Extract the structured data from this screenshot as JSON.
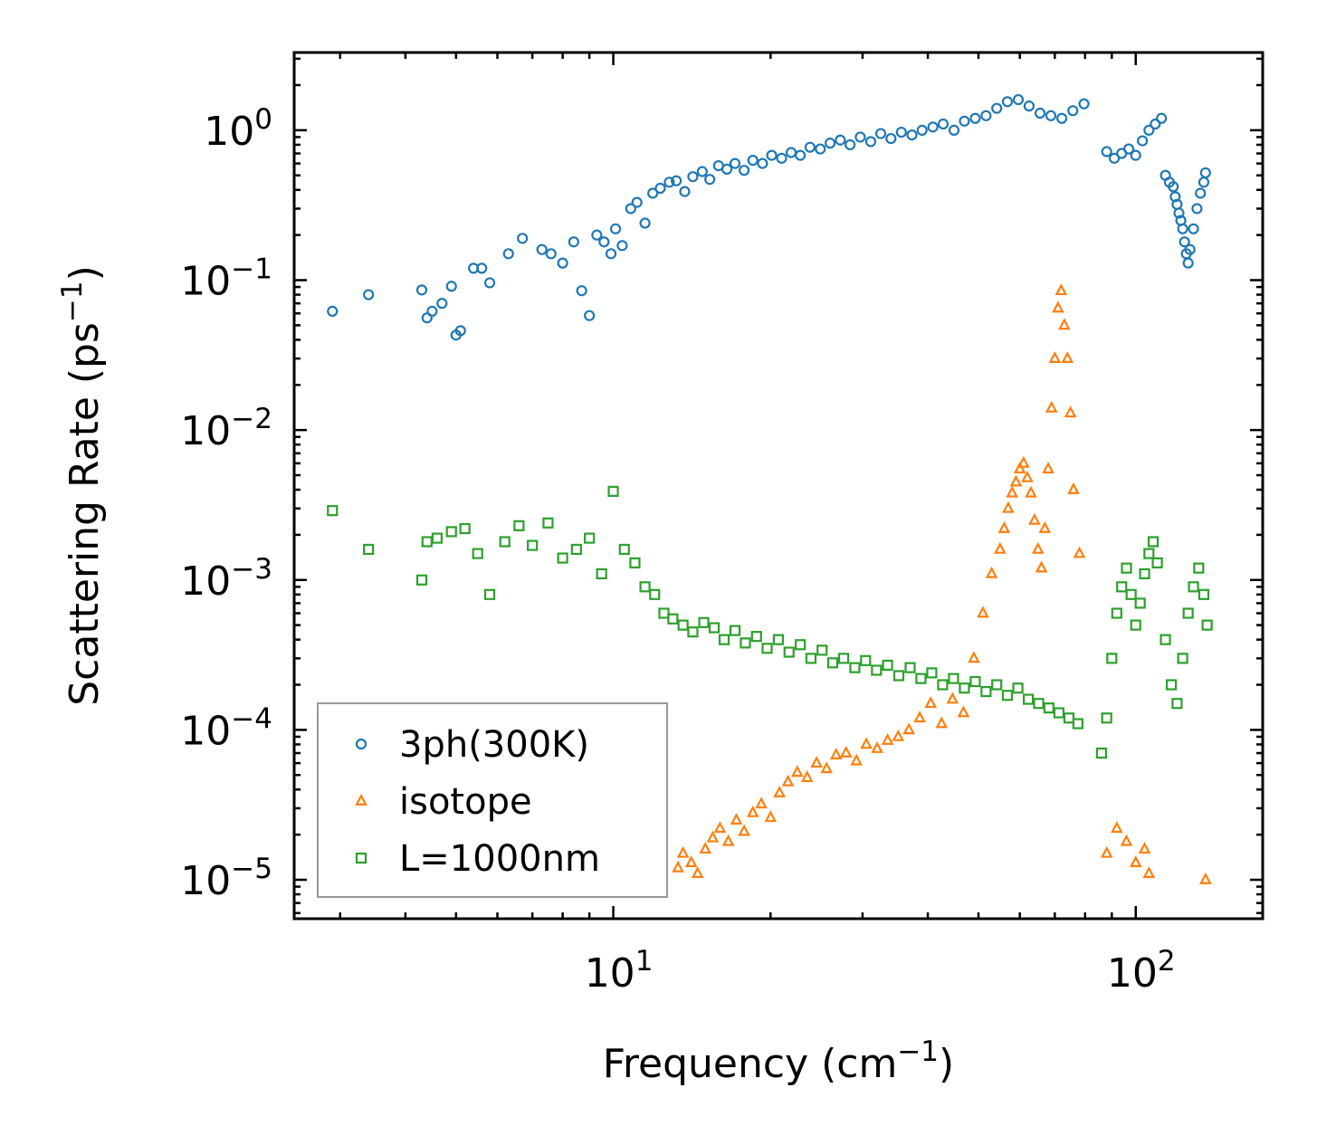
{
  "chart_data": {
    "type": "scatter",
    "title": "",
    "xscale": "log",
    "yscale": "log",
    "xlabel": {
      "base": "Frequency (cm",
      "sup": "−1",
      "tail": ")"
    },
    "ylabel": {
      "base": "Scattering Rate (ps",
      "sup": "−1",
      "tail": ")"
    },
    "xlim": [
      2.45,
      175
    ],
    "ylim": [
      5.5e-06,
      3.3
    ],
    "x_ticks": [
      {
        "value": 10,
        "base": "10",
        "exp": "1"
      },
      {
        "value": 100,
        "base": "10",
        "exp": "2"
      }
    ],
    "y_ticks": [
      {
        "value": 1,
        "base": "10",
        "exp": "0"
      },
      {
        "value": 0.1,
        "base": "10",
        "exp": "−1"
      },
      {
        "value": 0.01,
        "base": "10",
        "exp": "−2"
      },
      {
        "value": 0.001,
        "base": "10",
        "exp": "−3"
      },
      {
        "value": 0.0001,
        "base": "10",
        "exp": "−4"
      },
      {
        "value": 1e-05,
        "base": "10",
        "exp": "−5"
      }
    ],
    "legend_position": "lower-left",
    "series": [
      {
        "name": "3ph(300K)",
        "marker": "circle",
        "color": "#1f77b4",
        "x": [
          2.9,
          3.4,
          4.3,
          4.4,
          4.5,
          4.7,
          4.9,
          5.0,
          5.1,
          5.4,
          5.6,
          5.8,
          6.3,
          6.7,
          7.3,
          7.6,
          8.0,
          8.4,
          8.7,
          9.0,
          9.3,
          9.6,
          9.9,
          10.1,
          10.4,
          10.8,
          11.1,
          11.5,
          11.9,
          12.3,
          12.8,
          13.2,
          13.7,
          14.2,
          14.8,
          15.3,
          15.9,
          16.5,
          17.1,
          17.8,
          18.5,
          19.3,
          20.1,
          21.0,
          21.9,
          22.8,
          23.8,
          24.9,
          26.0,
          27.2,
          28.4,
          29.7,
          31.1,
          32.5,
          34.0,
          35.6,
          37.3,
          39.0,
          40.9,
          42.8,
          44.9,
          47.0,
          49.3,
          51.7,
          54.2,
          56.8,
          59.6,
          62.5,
          65.6,
          68.8,
          72.2,
          75.8,
          79.6,
          88.0,
          91.0,
          94.0,
          97.0,
          100.0,
          103.0,
          106.0,
          109.0,
          112.0,
          114.0,
          116.0,
          118.0,
          119.0,
          120.0,
          121.0,
          122.0,
          123.0,
          124.0,
          125.0,
          126.0,
          127.0,
          129.0,
          131.0,
          133.0,
          135.0,
          136.0
        ],
        "y": [
          0.062,
          0.08,
          0.086,
          0.056,
          0.062,
          0.07,
          0.091,
          0.043,
          0.046,
          0.12,
          0.12,
          0.096,
          0.15,
          0.19,
          0.16,
          0.15,
          0.13,
          0.18,
          0.085,
          0.058,
          0.2,
          0.18,
          0.15,
          0.22,
          0.17,
          0.3,
          0.33,
          0.24,
          0.38,
          0.41,
          0.45,
          0.46,
          0.39,
          0.49,
          0.53,
          0.47,
          0.58,
          0.55,
          0.6,
          0.54,
          0.63,
          0.6,
          0.68,
          0.65,
          0.71,
          0.68,
          0.77,
          0.75,
          0.82,
          0.86,
          0.8,
          0.9,
          0.84,
          0.95,
          0.88,
          0.97,
          0.93,
          1.0,
          1.05,
          1.1,
          1.0,
          1.15,
          1.2,
          1.25,
          1.4,
          1.55,
          1.6,
          1.45,
          1.3,
          1.25,
          1.2,
          1.35,
          1.5,
          0.72,
          0.65,
          0.7,
          0.75,
          0.68,
          0.85,
          1.0,
          1.1,
          1.2,
          0.5,
          0.45,
          0.42,
          0.36,
          0.32,
          0.28,
          0.25,
          0.22,
          0.18,
          0.15,
          0.13,
          0.16,
          0.22,
          0.3,
          0.38,
          0.45,
          0.52
        ]
      },
      {
        "name": "isotope",
        "marker": "triangle",
        "color": "#ff7f0e",
        "x": [
          13.3,
          13.6,
          14.1,
          14.5,
          15.0,
          15.5,
          16.0,
          16.6,
          17.2,
          17.8,
          18.5,
          19.2,
          20.0,
          20.8,
          21.6,
          22.5,
          23.5,
          24.5,
          25.6,
          26.7,
          27.9,
          29.2,
          30.5,
          32.0,
          33.5,
          35.1,
          36.8,
          38.6,
          40.5,
          42.5,
          44.6,
          46.8,
          49.0,
          51.0,
          53.0,
          55.0,
          56.0,
          57.0,
          58.0,
          59.0,
          60.0,
          61.0,
          62.0,
          63.0,
          64.0,
          65.0,
          66.0,
          67.0,
          68.0,
          69.0,
          70.0,
          71.0,
          72.0,
          73.0,
          74.0,
          75.0,
          76.0,
          78.0,
          88.0,
          92.0,
          96.0,
          100.0,
          104.0,
          106.0,
          136.0
        ],
        "y": [
          1.2e-05,
          1.5e-05,
          1.3e-05,
          1.1e-05,
          1.6e-05,
          1.9e-05,
          2.2e-05,
          1.8e-05,
          2.5e-05,
          2.1e-05,
          2.8e-05,
          3.2e-05,
          2.6e-05,
          3.8e-05,
          4.5e-05,
          5.2e-05,
          4.8e-05,
          6e-05,
          5.5e-05,
          6.8e-05,
          7e-05,
          6.2e-05,
          8e-05,
          7.5e-05,
          8.5e-05,
          9e-05,
          0.0001,
          0.00012,
          0.00015,
          0.00011,
          0.00016,
          0.00013,
          0.0003,
          0.0006,
          0.0011,
          0.0016,
          0.0022,
          0.003,
          0.0038,
          0.0045,
          0.0055,
          0.006,
          0.0048,
          0.0038,
          0.0025,
          0.0016,
          0.0012,
          0.0022,
          0.0055,
          0.014,
          0.03,
          0.065,
          0.085,
          0.05,
          0.03,
          0.013,
          0.004,
          0.0015,
          1.5e-05,
          2.2e-05,
          1.8e-05,
          1.3e-05,
          1.6e-05,
          1.1e-05,
          1e-05
        ]
      },
      {
        "name": "L=1000nm",
        "marker": "square",
        "color": "#2ca02c",
        "x": [
          2.9,
          3.4,
          4.3,
          4.4,
          4.6,
          4.9,
          5.2,
          5.5,
          5.8,
          6.2,
          6.6,
          7.0,
          7.5,
          8.0,
          8.5,
          9.0,
          9.5,
          10.0,
          10.5,
          11.0,
          11.5,
          12.0,
          12.5,
          13.0,
          13.6,
          14.2,
          14.9,
          15.6,
          16.3,
          17.1,
          17.9,
          18.8,
          19.7,
          20.7,
          21.7,
          22.8,
          23.9,
          25.1,
          26.3,
          27.6,
          29.0,
          30.4,
          31.9,
          33.5,
          35.2,
          37.0,
          38.8,
          40.7,
          42.7,
          44.8,
          47.0,
          49.3,
          51.7,
          54.2,
          56.8,
          59.5,
          62.3,
          65.2,
          68.2,
          71.3,
          74.5,
          77.5,
          86.0,
          88.0,
          90.0,
          92.0,
          94.0,
          96.0,
          98.0,
          100.0,
          102.0,
          104.0,
          106.0,
          108.0,
          110.0,
          114.0,
          117.0,
          120.0,
          123.0,
          126.0,
          129.0,
          132.0,
          135.0,
          137.0
        ],
        "y": [
          0.0029,
          0.0016,
          0.001,
          0.0018,
          0.0019,
          0.0021,
          0.0022,
          0.0015,
          0.0008,
          0.0018,
          0.0023,
          0.0017,
          0.0024,
          0.0014,
          0.0016,
          0.0019,
          0.0011,
          0.0039,
          0.0016,
          0.0013,
          0.0009,
          0.0008,
          0.0006,
          0.00055,
          0.0005,
          0.00045,
          0.00052,
          0.00048,
          0.0004,
          0.00046,
          0.00038,
          0.00042,
          0.00035,
          0.0004,
          0.00033,
          0.00037,
          0.0003,
          0.00034,
          0.00028,
          0.0003,
          0.00026,
          0.00029,
          0.00025,
          0.00027,
          0.00023,
          0.00026,
          0.00022,
          0.00024,
          0.0002,
          0.00022,
          0.00019,
          0.00021,
          0.00018,
          0.0002,
          0.00017,
          0.00019,
          0.00016,
          0.00015,
          0.00014,
          0.00013,
          0.00012,
          0.00011,
          7e-05,
          0.00012,
          0.0003,
          0.0006,
          0.0009,
          0.0012,
          0.0008,
          0.0005,
          0.0007,
          0.0011,
          0.0015,
          0.0018,
          0.0013,
          0.0004,
          0.0002,
          0.00015,
          0.0003,
          0.0006,
          0.0009,
          0.0012,
          0.0008,
          0.0005
        ]
      }
    ]
  }
}
